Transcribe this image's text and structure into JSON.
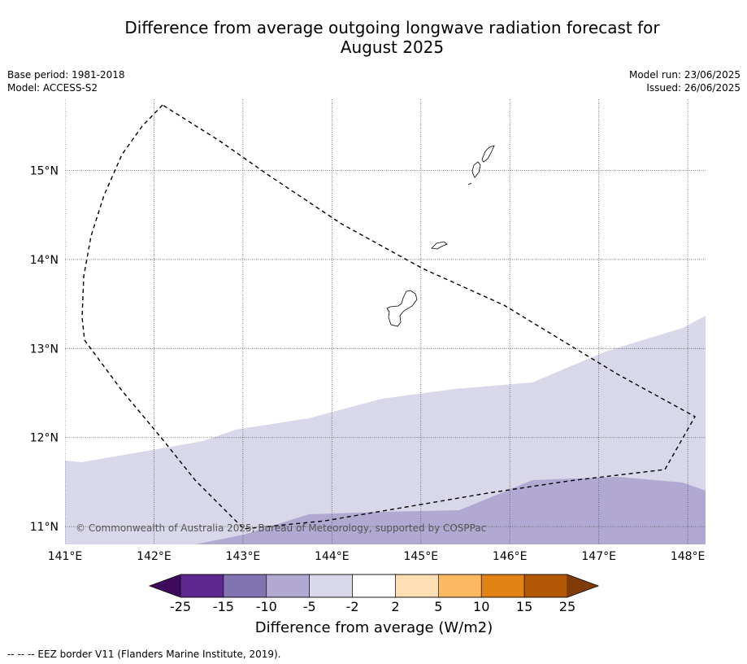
{
  "title_line1": "Difference from average outgoing longwave radiation forecast for",
  "title_line2": "August 2025",
  "meta_left": {
    "base_period": "Base period: 1981-2018",
    "model": "Model: ACCESS-S2"
  },
  "meta_right": {
    "model_run": "Model run: 23/06/2025",
    "issued": "Issued: 26/06/2025"
  },
  "map": {
    "lon_range": [
      141.0,
      148.2
    ],
    "lat_range": [
      10.8,
      15.8
    ],
    "lon_ticks": [
      141,
      142,
      143,
      144,
      145,
      146,
      147,
      148
    ],
    "lon_labels": [
      "141°E",
      "142°E",
      "143°E",
      "144°E",
      "145°E",
      "146°E",
      "147°E",
      "148°E"
    ],
    "lat_ticks": [
      11,
      12,
      13,
      14,
      15
    ],
    "lat_labels": [
      "11°N",
      "12°N",
      "13°N",
      "14°N",
      "15°N"
    ],
    "copyright": "© Commonwealth of Australia 2025, Bureau of Meteorology, supported by COSPPac",
    "colors": {
      "light_lavender": "#d8d8ea",
      "lavender": "#b1a9d2",
      "gridline": "#555555"
    }
  },
  "colorbar": {
    "tick_labels": [
      "-25",
      "-15",
      "-10",
      "-5",
      "-2",
      "2",
      "5",
      "10",
      "15",
      "25"
    ],
    "colors": [
      "#3f0a5b",
      "#5c2890",
      "#8273b3",
      "#b1a9d2",
      "#d8d8ea",
      "#ffffff",
      "#fddfb3",
      "#fdb863",
      "#e08214",
      "#b35806",
      "#7f3b08"
    ],
    "title": "Difference from average (W/m2)"
  },
  "footnote": "--  --  -- EEZ border V11 (Flanders Marine Institute, 2019)."
}
